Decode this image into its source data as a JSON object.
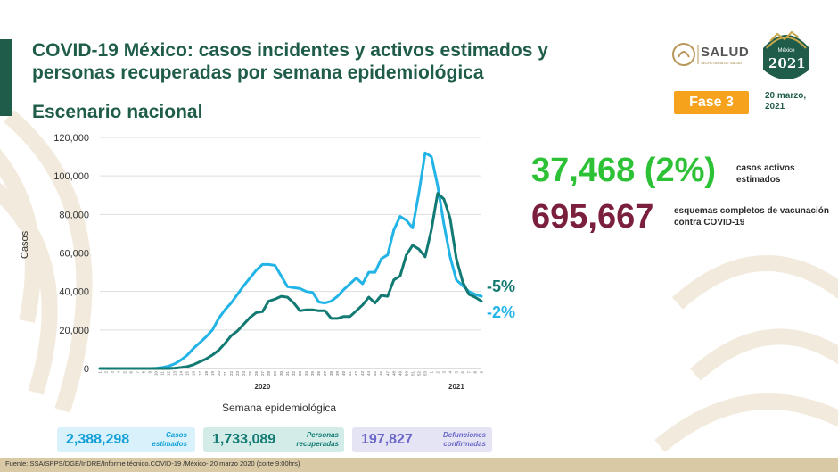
{
  "header": {
    "title_line1": "COVID-19 México: casos incidentes y activos estimados y",
    "title_line2": "personas recuperadas por semana epidemiológica",
    "subtitle": "Escenario nacional"
  },
  "logos": {
    "salud_text": "SALUD",
    "salud_sub": "SECRETARÍA DE SALUD",
    "seal_top": "México",
    "seal_year": "2021"
  },
  "phase": {
    "label": "Fase 3",
    "color": "#f6a21c"
  },
  "date": {
    "line1": "20 marzo,",
    "line2": "2021"
  },
  "highlights": {
    "active_value": "37,468 (2%)",
    "active_label": "casos activos estimados",
    "vaccination_value": "695,667",
    "vaccination_label": "esquemas completos de vacunación contra COVID-19"
  },
  "changes": {
    "recovered": "-5%",
    "estimated": "-2%"
  },
  "stats": [
    {
      "value": "2,388,298",
      "label_line1": "Casos",
      "label_line2": "estimados",
      "color": "#13a0d8"
    },
    {
      "value": "1,733,089",
      "label_line1": "Personas",
      "label_line2": "recuperadas",
      "color": "#127a73"
    },
    {
      "value": "197,827",
      "label_line1": "Defunciones",
      "label_line2": "confirmadas",
      "color": "#6a67c8"
    }
  ],
  "footer": "Fuente: SSA/SPPS/DGE/InDRE/Informe técnico.COVID-19 /México- 20 marzo 2020 (corte 9:00hrs)",
  "chart_data": {
    "type": "line",
    "xlabel": "Semana epidemiológica",
    "ylabel": "Casos",
    "ylim": [
      0,
      120000
    ],
    "yticks": [
      0,
      20000,
      40000,
      60000,
      80000,
      100000,
      120000
    ],
    "ytick_labels": [
      "0",
      "20,000",
      "40,000",
      "60,000",
      "80,000",
      "100,000",
      "120,000"
    ],
    "grid": "horizontal",
    "x": [
      "1",
      "2",
      "3",
      "4",
      "5",
      "6",
      "7",
      "8",
      "9",
      "10",
      "11",
      "12",
      "13",
      "14",
      "15",
      "16",
      "17",
      "18",
      "19",
      "20",
      "21",
      "22",
      "23",
      "24",
      "25",
      "26",
      "27",
      "28",
      "29",
      "30",
      "31",
      "32",
      "33",
      "34",
      "35",
      "36",
      "37",
      "38",
      "39",
      "40",
      "41",
      "42",
      "43",
      "44",
      "45",
      "46",
      "47",
      "48",
      "49",
      "50",
      "51",
      "52",
      "53",
      "1",
      "2",
      "3",
      "4",
      "5",
      "6",
      "7",
      "8",
      "9"
    ],
    "year_labels": [
      {
        "label": "2020",
        "at_index": 26
      },
      {
        "label": "2021",
        "at_index": 57
      }
    ],
    "series": [
      {
        "color": "#22b4e6",
        "values": [
          0,
          0,
          0,
          0,
          0,
          0,
          0,
          0,
          0,
          100,
          500,
          1200,
          2500,
          4500,
          7000,
          10500,
          13500,
          16500,
          20000,
          26000,
          30500,
          34000,
          38500,
          43000,
          47000,
          51000,
          54000,
          54000,
          53500,
          48000,
          42500,
          42000,
          41500,
          40000,
          39500,
          34500,
          34000,
          35000,
          37500,
          41000,
          44000,
          47000,
          44000,
          50000,
          50000,
          57000,
          59000,
          72000,
          79000,
          77000,
          73000,
          91000,
          112000,
          110000,
          95000,
          75000,
          58000,
          46000,
          43000,
          40000,
          38500,
          37500
        ]
      },
      {
        "color": "#127a73",
        "values": [
          0,
          0,
          0,
          0,
          0,
          0,
          0,
          0,
          0,
          0,
          0,
          0,
          200,
          500,
          1000,
          2000,
          3500,
          5000,
          7000,
          9500,
          13000,
          17000,
          19500,
          23000,
          26500,
          29000,
          29500,
          35000,
          36000,
          37500,
          37000,
          34000,
          30000,
          30500,
          30500,
          30000,
          30000,
          26000,
          26000,
          27000,
          27000,
          30000,
          33000,
          37000,
          34000,
          38000,
          37500,
          46000,
          48000,
          59000,
          64000,
          62000,
          58000,
          72000,
          91000,
          88000,
          78000,
          57000,
          45000,
          38500,
          37000,
          35000
        ]
      }
    ]
  }
}
